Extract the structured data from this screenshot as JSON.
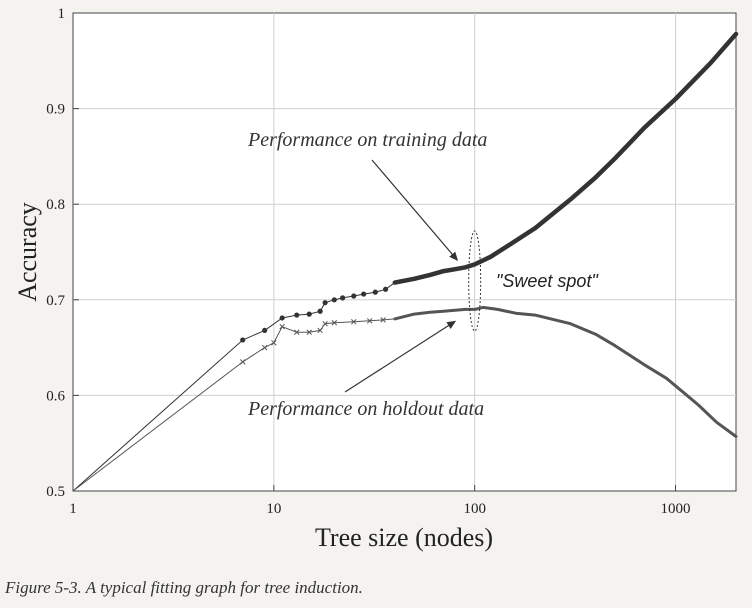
{
  "chart_data": {
    "type": "line",
    "xlabel": "Tree size (nodes)",
    "ylabel": "Accuracy",
    "x_scale": "log",
    "xlim": [
      1,
      2000
    ],
    "ylim": [
      0.5,
      1.0
    ],
    "x_ticks": [
      {
        "value": 1,
        "label": "1"
      },
      {
        "value": 10,
        "label": "10"
      },
      {
        "value": 100,
        "label": "100"
      },
      {
        "value": 1000,
        "label": "1000"
      }
    ],
    "y_ticks": [
      {
        "value": 0.5,
        "label": "0.5"
      },
      {
        "value": 0.6,
        "label": "0.6"
      },
      {
        "value": 0.7,
        "label": "0.7"
      },
      {
        "value": 0.8,
        "label": "0.8"
      },
      {
        "value": 0.9,
        "label": "0.9"
      },
      {
        "value": 1.0,
        "label": "1"
      }
    ],
    "grid": true,
    "series": [
      {
        "name": "",
        "marker": "dot",
        "color": "#333333",
        "x": [
          1,
          7,
          9,
          11,
          13,
          15,
          17,
          18,
          20,
          22,
          25,
          28,
          32,
          36,
          40,
          50,
          60,
          70,
          80,
          90,
          100,
          120,
          150,
          200,
          300,
          400,
          500,
          700,
          1000,
          1500,
          2000
        ],
        "y": [
          0.5,
          0.658,
          0.668,
          0.681,
          0.684,
          0.685,
          0.688,
          0.697,
          0.7,
          0.702,
          0.704,
          0.706,
          0.708,
          0.711,
          0.718,
          0.722,
          0.726,
          0.73,
          0.732,
          0.734,
          0.737,
          0.745,
          0.758,
          0.775,
          0.805,
          0.828,
          0.848,
          0.88,
          0.91,
          0.948,
          0.978
        ]
      },
      {
        "name": "",
        "marker": "x",
        "color": "#555555",
        "x": [
          1,
          7,
          9,
          10,
          11,
          13,
          15,
          17,
          18,
          20,
          25,
          30,
          35,
          40,
          50,
          60,
          70,
          80,
          90,
          100,
          110,
          130,
          160,
          200,
          300,
          400,
          500,
          700,
          900,
          1000,
          1300,
          1600,
          2000
        ],
        "y": [
          0.5,
          0.635,
          0.65,
          0.655,
          0.672,
          0.666,
          0.666,
          0.668,
          0.675,
          0.676,
          0.677,
          0.678,
          0.679,
          0.68,
          0.685,
          0.687,
          0.688,
          0.689,
          0.69,
          0.69,
          0.692,
          0.69,
          0.686,
          0.684,
          0.675,
          0.664,
          0.652,
          0.632,
          0.618,
          0.61,
          0.59,
          0.572,
          0.557
        ]
      }
    ],
    "annotations": {
      "training": {
        "text": "Performance on training data",
        "target_x": 82,
        "target_y": 0.733
      },
      "holdout": {
        "text": "Performance on holdout data",
        "target_x": 80,
        "target_y": 0.688
      },
      "sweet_spot": {
        "text": "\"Sweet spot\"",
        "x": 100
      }
    }
  },
  "caption": "Figure 5-3. A typical fitting graph for tree induction."
}
